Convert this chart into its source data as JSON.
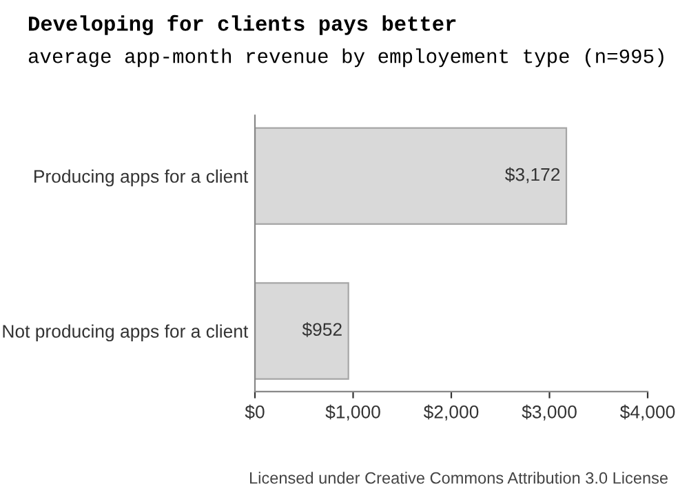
{
  "chart_data": {
    "type": "bar",
    "orientation": "horizontal",
    "title": "Developing for clients pays better",
    "subtitle": "average app-month revenue by employement type (n=995)",
    "categories": [
      "Producing apps for a client",
      "Not producing apps for a client"
    ],
    "values": [
      3172,
      952
    ],
    "value_labels": [
      "$3,172",
      "$952"
    ],
    "color": "#d9d9d9",
    "xlim": [
      0,
      4000
    ],
    "xticks": [
      {
        "value": 0,
        "label": "$0"
      },
      {
        "value": 1000,
        "label": "$1,000"
      },
      {
        "value": 2000,
        "label": "$2,000"
      },
      {
        "value": 3000,
        "label": "$3,000"
      },
      {
        "value": 4000,
        "label": "$4,000"
      }
    ],
    "grid": false,
    "annotations": [
      "Licensed under Creative Commons Attribution 3.0 License"
    ]
  }
}
